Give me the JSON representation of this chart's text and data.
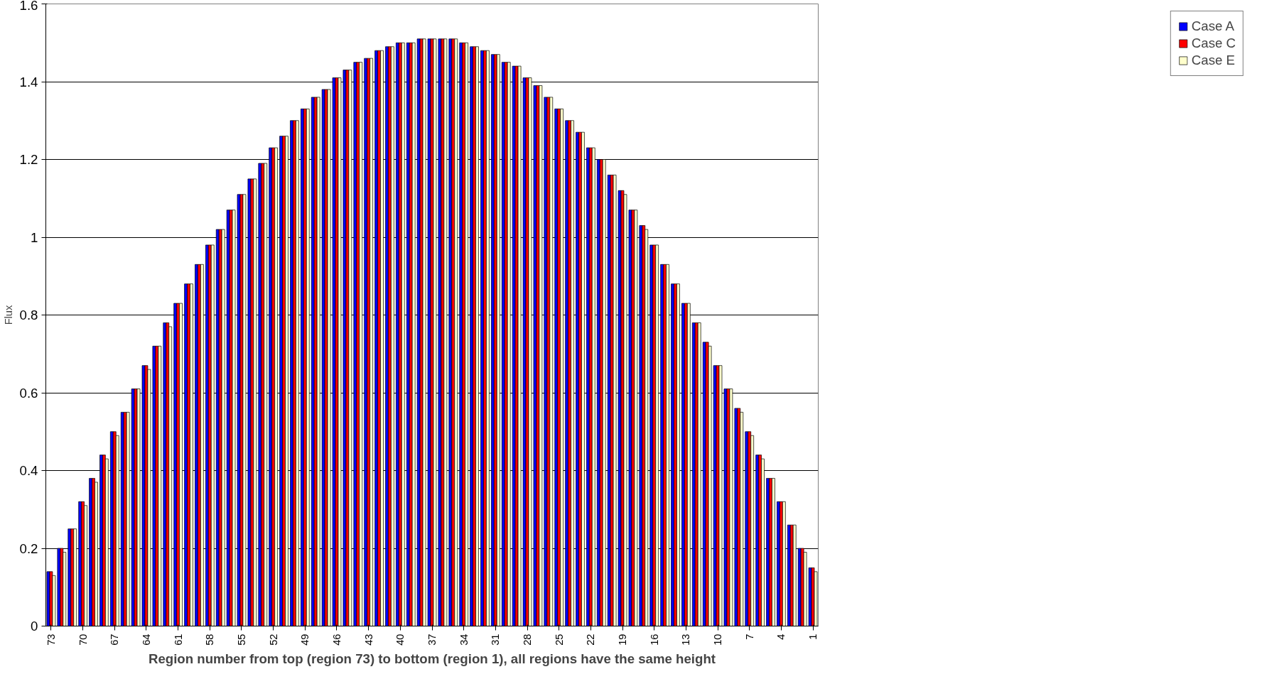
{
  "chart_data": {
    "type": "bar",
    "xlabel": "Region number from top (region 73) to bottom (region 1), all regions have the same height",
    "ylabel": "Flux",
    "categories": [
      "73",
      null,
      null,
      "70",
      null,
      null,
      "67",
      null,
      null,
      "64",
      null,
      null,
      "61",
      null,
      null,
      "58",
      null,
      null,
      "55",
      null,
      null,
      "52",
      null,
      null,
      "49",
      null,
      null,
      "46",
      null,
      null,
      "43",
      null,
      null,
      "40",
      null,
      null,
      "37",
      null,
      null,
      "34",
      null,
      null,
      "31",
      null,
      null,
      "28",
      null,
      null,
      "25",
      null,
      null,
      "22",
      null,
      null,
      "19",
      null,
      null,
      "16",
      null,
      null,
      "13",
      null,
      null,
      "10",
      null,
      null,
      "7",
      null,
      null,
      "4",
      null,
      null,
      "1"
    ],
    "series": [
      {
        "name": "Case A",
        "color": "#0000ff",
        "values": [
          0.14,
          0.2,
          0.25,
          0.32,
          0.38,
          0.44,
          0.5,
          0.55,
          0.61,
          0.67,
          0.72,
          0.78,
          0.83,
          0.88,
          0.93,
          0.98,
          1.02,
          1.07,
          1.11,
          1.15,
          1.19,
          1.23,
          1.26,
          1.3,
          1.33,
          1.36,
          1.38,
          1.41,
          1.43,
          1.45,
          1.46,
          1.48,
          1.49,
          1.5,
          1.5,
          1.51,
          1.51,
          1.51,
          1.51,
          1.5,
          1.49,
          1.48,
          1.47,
          1.45,
          1.44,
          1.41,
          1.39,
          1.36,
          1.33,
          1.3,
          1.27,
          1.23,
          1.2,
          1.16,
          1.12,
          1.07,
          1.03,
          0.98,
          0.93,
          0.88,
          0.83,
          0.78,
          0.73,
          0.67,
          0.61,
          0.56,
          0.5,
          0.44,
          0.38,
          0.32,
          0.26,
          0.2,
          0.15
        ]
      },
      {
        "name": "Case C",
        "color": "#ff0000",
        "values": [
          0.14,
          0.2,
          0.25,
          0.32,
          0.38,
          0.44,
          0.5,
          0.55,
          0.61,
          0.67,
          0.72,
          0.78,
          0.83,
          0.88,
          0.93,
          0.98,
          1.02,
          1.07,
          1.11,
          1.15,
          1.19,
          1.23,
          1.26,
          1.3,
          1.33,
          1.36,
          1.38,
          1.41,
          1.43,
          1.45,
          1.46,
          1.48,
          1.49,
          1.5,
          1.5,
          1.51,
          1.51,
          1.51,
          1.51,
          1.5,
          1.49,
          1.48,
          1.47,
          1.45,
          1.44,
          1.41,
          1.39,
          1.36,
          1.33,
          1.3,
          1.27,
          1.23,
          1.2,
          1.16,
          1.12,
          1.07,
          1.03,
          0.98,
          0.93,
          0.88,
          0.83,
          0.78,
          0.73,
          0.67,
          0.61,
          0.56,
          0.5,
          0.44,
          0.38,
          0.32,
          0.26,
          0.2,
          0.15
        ]
      },
      {
        "name": "Case E",
        "color": "#ffffcc",
        "values": [
          0.13,
          0.19,
          0.25,
          0.31,
          0.37,
          0.43,
          0.49,
          0.55,
          0.61,
          0.66,
          0.72,
          0.77,
          0.83,
          0.88,
          0.93,
          0.98,
          1.02,
          1.07,
          1.11,
          1.15,
          1.19,
          1.23,
          1.26,
          1.3,
          1.33,
          1.36,
          1.38,
          1.41,
          1.43,
          1.45,
          1.46,
          1.48,
          1.49,
          1.5,
          1.5,
          1.51,
          1.51,
          1.51,
          1.51,
          1.5,
          1.49,
          1.48,
          1.47,
          1.45,
          1.44,
          1.41,
          1.39,
          1.36,
          1.33,
          1.3,
          1.27,
          1.23,
          1.2,
          1.16,
          1.11,
          1.07,
          1.02,
          0.98,
          0.93,
          0.88,
          0.83,
          0.78,
          0.72,
          0.67,
          0.61,
          0.55,
          0.49,
          0.43,
          0.38,
          0.32,
          0.26,
          0.19,
          0.14
        ]
      }
    ],
    "ylim": [
      0,
      1.6
    ],
    "yticks": [
      0,
      0.2,
      0.4,
      0.6,
      0.8,
      1,
      1.2,
      1.4,
      1.6
    ],
    "grid": "y",
    "legend": "right"
  }
}
